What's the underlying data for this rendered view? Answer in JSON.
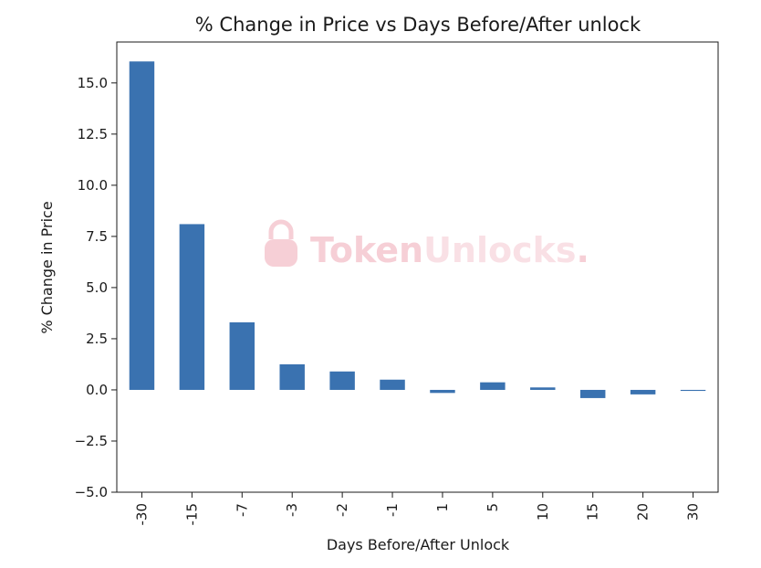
{
  "chart_data": {
    "type": "bar",
    "title": "% Change in Price vs Days Before/After unlock",
    "xlabel": "Days Before/After Unlock",
    "ylabel": "% Change in Price",
    "categories": [
      "-30",
      "-15",
      "-7",
      "-3",
      "-2",
      "-1",
      "1",
      "5",
      "10",
      "15",
      "20",
      "30"
    ],
    "values": [
      16.05,
      8.1,
      3.3,
      1.25,
      0.9,
      0.5,
      -0.15,
      0.37,
      0.12,
      -0.4,
      -0.22,
      -0.05
    ],
    "ylim": [
      -5.0,
      17.0
    ],
    "yticks": [
      -5.0,
      -2.5,
      0.0,
      2.5,
      5.0,
      7.5,
      10.0,
      12.5,
      15.0
    ],
    "ytick_labels": [
      "−5.0",
      "−2.5",
      "0.0",
      "2.5",
      "5.0",
      "7.5",
      "10.0",
      "12.5",
      "15.0"
    ],
    "bar_color": "#3a72b0",
    "grid": false,
    "legend": "none"
  },
  "watermark": {
    "text_part1": "Token",
    "text_part2": "Unlocks",
    "text_part3": ".",
    "color_part1": "#f6cfd6",
    "color_part2": "#f9e0e5",
    "icon": "lock-icon"
  }
}
